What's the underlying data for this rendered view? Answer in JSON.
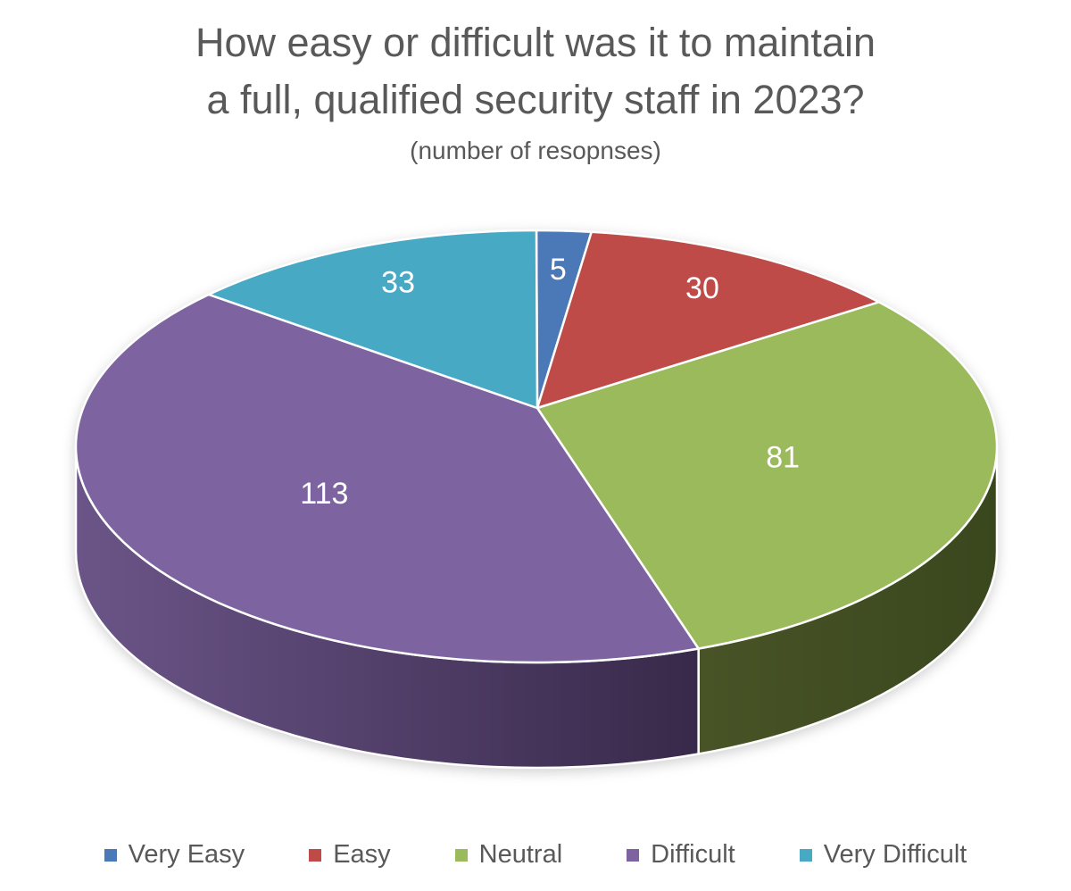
{
  "title": {
    "line1": "How easy or difficult was it to maintain",
    "line2": "a full, qualified security staff in 2023?",
    "subtitle": "(number of resopnses)"
  },
  "chart_data": {
    "type": "pie",
    "style": "3d",
    "title": "How easy or difficult was it to maintain a full, qualified security staff in 2023?",
    "subtitle": "(number of resopnses)",
    "units": "responses",
    "total": 262,
    "start_angle_deg": 0,
    "direction": "clockwise",
    "legend_position": "bottom",
    "data_labels": "values-inside-white",
    "series": [
      {
        "label": "Very Easy",
        "value": 5,
        "color": "#4B79B7"
      },
      {
        "label": "Easy",
        "value": 30,
        "color": "#BE4B48"
      },
      {
        "label": "Neutral",
        "value": 81,
        "color": "#9ABA5C",
        "side_gradient": [
          "#485426",
          "#3A471E"
        ]
      },
      {
        "label": "Difficult",
        "value": 113,
        "color": "#7D64A0",
        "side_gradient": [
          "#6B5588",
          "#38294A"
        ]
      },
      {
        "label": "Very Difficult",
        "value": 33,
        "color": "#48A9C5"
      }
    ],
    "text_color": "#595959",
    "label_color": "#FFFFFF",
    "slice_border_color": "#FFFFFF"
  }
}
